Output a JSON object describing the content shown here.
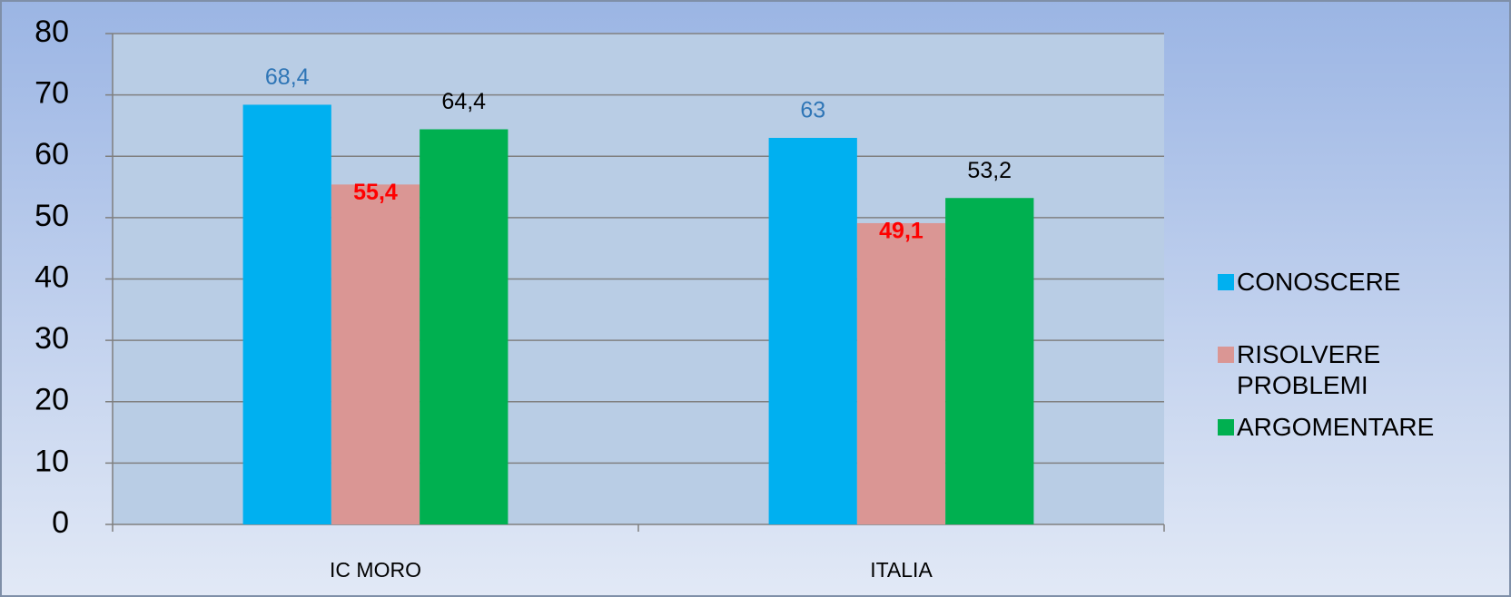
{
  "chart_data": {
    "type": "bar",
    "categories": [
      "IC MORO",
      "ITALIA"
    ],
    "series": [
      {
        "name": "CONOSCERE",
        "color": "#00b0f0",
        "label_color": "#2e75b6",
        "values": [
          68.4,
          63
        ],
        "value_labels": [
          "68,4",
          "63"
        ]
      },
      {
        "name": "RISOLVERE PROBLEMI",
        "color": "#da9694",
        "label_color": "#ff0000",
        "values": [
          55.4,
          49.1
        ],
        "value_labels": [
          "55,4",
          "49,1"
        ]
      },
      {
        "name": "ARGOMENTARE",
        "color": "#00b050",
        "label_color": "#000000",
        "values": [
          64.4,
          53.2
        ],
        "value_labels": [
          "64,4",
          "53,2"
        ]
      }
    ],
    "ylim": [
      0,
      80
    ],
    "yticks": [
      0,
      10,
      20,
      30,
      40,
      50,
      60,
      70,
      80
    ],
    "grid": true,
    "legend": "right"
  }
}
